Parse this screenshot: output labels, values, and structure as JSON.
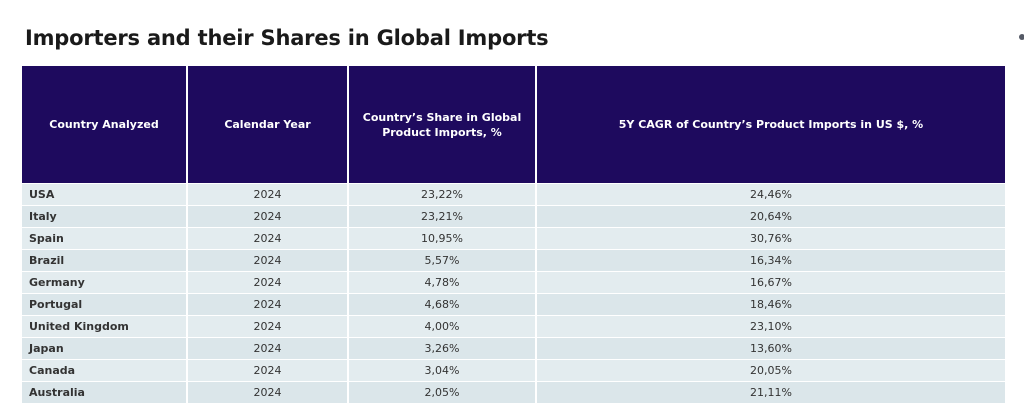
{
  "title": "Importers and their Shares in Global Imports",
  "table": {
    "headers": [
      "Country Analyzed",
      "Calendar Year",
      "Country’s Share in Global Product Imports, %",
      "5Y CAGR of Country’s Product Imports in US $, %"
    ],
    "rows": [
      {
        "country": "USA",
        "year": "2024",
        "share": "23,22%",
        "cagr": "24,46%"
      },
      {
        "country": "Italy",
        "year": "2024",
        "share": "23,21%",
        "cagr": "20,64%"
      },
      {
        "country": "Spain",
        "year": "2024",
        "share": "10,95%",
        "cagr": "30,76%"
      },
      {
        "country": "Brazil",
        "year": "2024",
        "share": "5,57%",
        "cagr": "16,34%"
      },
      {
        "country": "Germany",
        "year": "2024",
        "share": "4,78%",
        "cagr": "16,67%"
      },
      {
        "country": "Portugal",
        "year": "2024",
        "share": "4,68%",
        "cagr": "18,46%"
      },
      {
        "country": "United Kingdom",
        "year": "2024",
        "share": "4,00%",
        "cagr": "23,10%"
      },
      {
        "country": "Japan",
        "year": "2024",
        "share": "3,26%",
        "cagr": "13,60%"
      },
      {
        "country": "Canada",
        "year": "2024",
        "share": "3,04%",
        "cagr": "20,05%"
      },
      {
        "country": "Australia",
        "year": "2024",
        "share": "2,05%",
        "cagr": "21,11%"
      }
    ]
  },
  "colors": {
    "header_bg": "#1e0a5e",
    "row_bg": "#e3ecef"
  }
}
